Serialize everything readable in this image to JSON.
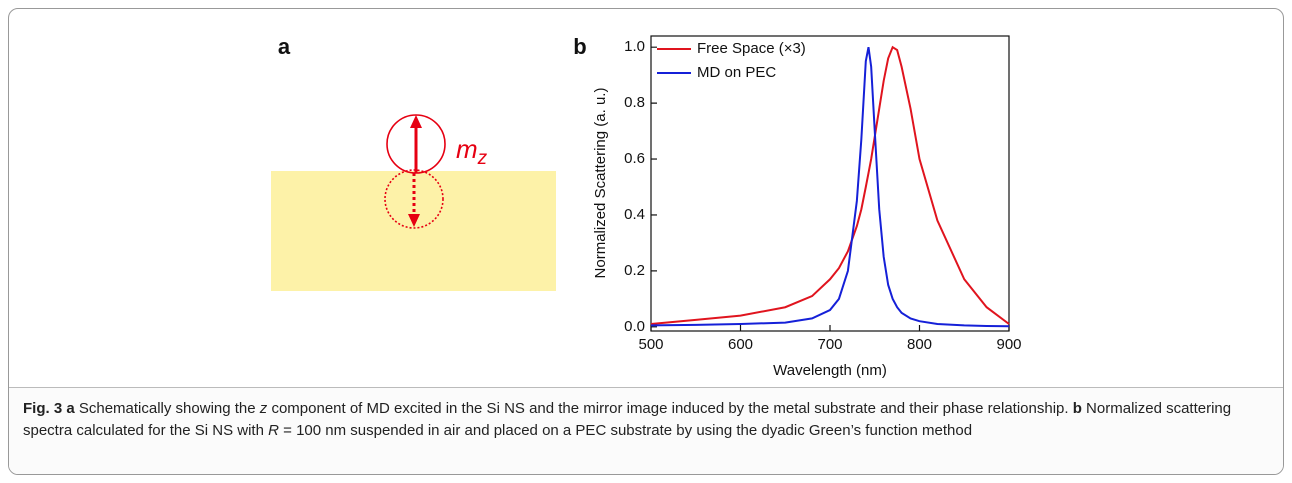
{
  "panel_a": {
    "label": "a",
    "moment": "m",
    "moment_sub": "z"
  },
  "chart_data": {
    "type": "line",
    "label": "b",
    "xlabel": "Wavelength (nm)",
    "ylabel": "Normalized Scattering (a. u.)",
    "x": [
      500,
      550,
      600,
      650,
      680,
      700,
      710,
      720,
      730,
      735,
      740,
      743,
      746,
      750,
      755,
      760,
      765,
      770,
      775,
      780,
      790,
      800,
      820,
      850,
      875,
      900
    ],
    "series": [
      {
        "name": "Free Space (×3)",
        "color": "#e0141e",
        "values": [
          0.01,
          0.025,
          0.04,
          0.07,
          0.11,
          0.17,
          0.21,
          0.27,
          0.36,
          0.42,
          0.5,
          0.55,
          0.6,
          0.68,
          0.78,
          0.88,
          0.96,
          1.0,
          0.99,
          0.93,
          0.78,
          0.6,
          0.38,
          0.17,
          0.07,
          0.01
        ]
      },
      {
        "name": "MD on PEC",
        "color": "#1520d8",
        "values": [
          0.005,
          0.007,
          0.01,
          0.015,
          0.03,
          0.06,
          0.1,
          0.2,
          0.45,
          0.67,
          0.95,
          1.0,
          0.93,
          0.7,
          0.42,
          0.25,
          0.15,
          0.1,
          0.07,
          0.05,
          0.03,
          0.02,
          0.01,
          0.005,
          0.003,
          0.002
        ]
      }
    ],
    "xlim": [
      500,
      900
    ],
    "xticks": [
      500,
      600,
      700,
      800,
      900
    ],
    "ylim": [
      -0.015,
      1.04
    ],
    "yticks": [
      {
        "value": 0,
        "label": "0.0"
      },
      0.2,
      0.4,
      0.6,
      0.8,
      {
        "value": 1,
        "label": "1.0"
      }
    ],
    "legend": "upper-left"
  },
  "caption": {
    "runs": [
      {
        "text": "Fig. 3 a",
        "style": "bold"
      },
      {
        "text": " Schematically showing the ",
        "style": "normal"
      },
      {
        "text": "z",
        "style": "italic"
      },
      {
        "text": " component of MD excited in the Si NS and the mirror image induced by the metal substrate and their phase relationship. ",
        "style": "normal"
      },
      {
        "text": "b",
        "style": "bold"
      },
      {
        "text": " Normalized scattering spectra calculated for the Si NS with ",
        "style": "normal"
      },
      {
        "text": "R",
        "style": "italic"
      },
      {
        "text": " = 100 nm suspended in air and placed on a PEC substrate by using the dyadic Green’s function method",
        "style": "normal"
      }
    ]
  }
}
